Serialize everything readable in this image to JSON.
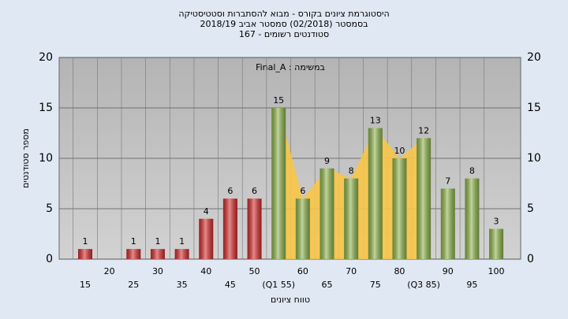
{
  "chart_data": {
    "type": "bar",
    "title": [
      "היסטוגרמת ציונים בקורס - מבוא להסתברות וסטטיסטיקה",
      "בסמסטר  (02/2018)  סמסטר אביב 2018/19",
      "סטודנטים רשומים - 167"
    ],
    "annotation": "Final_A : במשימה",
    "y_label": "מספר סטודנטים",
    "x_label": "טווח ציונים",
    "categories": [
      "15",
      "20",
      "25",
      "30",
      "35",
      "40",
      "45",
      "50",
      "(Q1 55)",
      "60",
      "65",
      "70",
      "75",
      "80",
      "(Q3 85)",
      "90",
      "95",
      "100"
    ],
    "values": [
      1,
      null,
      1,
      1,
      1,
      4,
      6,
      6,
      15,
      6,
      9,
      8,
      13,
      10,
      12,
      7,
      8,
      3
    ],
    "bar_colors": [
      "#d42a2a",
      null,
      "#d42a2a",
      "#d42a2a",
      "#d42a2a",
      "#d42a2a",
      "#d42a2a",
      "#d42a2a",
      "#8db34a",
      "#8db34a",
      "#8db34a",
      "#8db34a",
      "#8db34a",
      "#8db34a",
      "#8db34a",
      "#8db34a",
      "#8db34a",
      "#8db34a"
    ],
    "band_color": "#f7c548",
    "ylim": [
      0,
      20
    ],
    "yticks": [
      0,
      5,
      10,
      15,
      20
    ],
    "y2lim": [
      0,
      20
    ],
    "y2ticks": [
      0,
      5,
      10,
      15,
      20
    ],
    "grid": true
  }
}
